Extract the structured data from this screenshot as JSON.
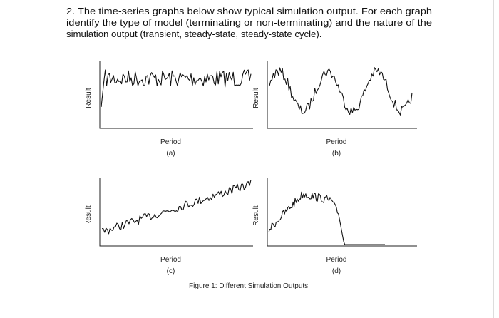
{
  "question": {
    "lines": [
      "2. The time-series graphs below show typical simulation output. For each graph",
      "identify the type of model (terminating or non-terminating) and the nature of the",
      "simulation output (transient, steady-state, steady-state cycle)."
    ]
  },
  "graphs": [
    {
      "y_label": "Result",
      "x_label": "Period",
      "caption": "(a)"
    },
    {
      "y_label": "Result",
      "x_label": "Period",
      "caption": "(b)"
    },
    {
      "y_label": "Result",
      "x_label": "Period",
      "caption": "(c)"
    },
    {
      "y_label": "Result",
      "x_label": "Period",
      "caption": "(d)"
    }
  ],
  "figure_caption": "Figure 1: Different Simulation Outputs."
}
